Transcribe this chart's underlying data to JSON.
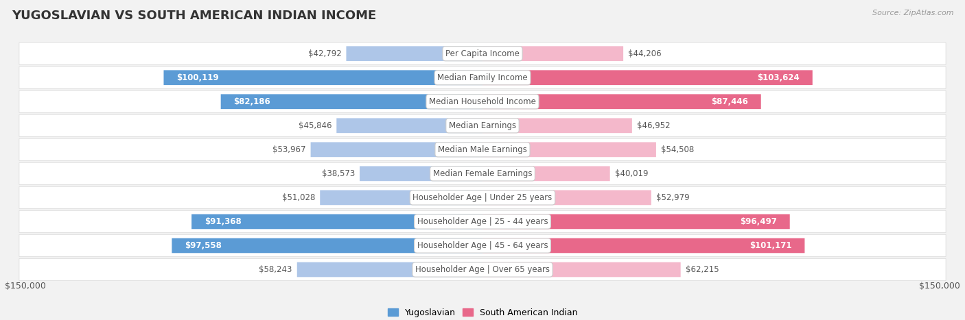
{
  "title": "YUGOSLAVIAN VS SOUTH AMERICAN INDIAN INCOME",
  "source": "Source: ZipAtlas.com",
  "categories": [
    "Per Capita Income",
    "Median Family Income",
    "Median Household Income",
    "Median Earnings",
    "Median Male Earnings",
    "Median Female Earnings",
    "Householder Age | Under 25 years",
    "Householder Age | 25 - 44 years",
    "Householder Age | 45 - 64 years",
    "Householder Age | Over 65 years"
  ],
  "yugoslav_values": [
    42792,
    100119,
    82186,
    45846,
    53967,
    38573,
    51028,
    91368,
    97558,
    58243
  ],
  "south_american_values": [
    44206,
    103624,
    87446,
    46952,
    54508,
    40019,
    52979,
    96497,
    101171,
    62215
  ],
  "yugoslav_labels": [
    "$42,792",
    "$100,119",
    "$82,186",
    "$45,846",
    "$53,967",
    "$38,573",
    "$51,028",
    "$91,368",
    "$97,558",
    "$58,243"
  ],
  "south_american_labels": [
    "$44,206",
    "$103,624",
    "$87,446",
    "$46,952",
    "$54,508",
    "$40,019",
    "$52,979",
    "$96,497",
    "$101,171",
    "$62,215"
  ],
  "yugoslav_inside": [
    false,
    true,
    true,
    false,
    false,
    false,
    false,
    true,
    true,
    false
  ],
  "south_american_inside": [
    false,
    true,
    true,
    false,
    false,
    false,
    false,
    true,
    true,
    false
  ],
  "max_value": 150000,
  "bar_height": 0.62,
  "yugoslav_light_color": "#aec6e8",
  "yugoslav_dark_color": "#5b9bd5",
  "south_american_light_color": "#f4b8cb",
  "south_american_dark_color": "#e8688a",
  "bg_color": "#f2f2f2",
  "row_bg": "#ffffff",
  "row_border": "#d8d8d8",
  "title_color": "#333333",
  "label_inside_color": "#ffffff",
  "label_outside_color": "#555555",
  "cat_label_color": "#555555",
  "legend_yugoslav_color": "#5b9bd5",
  "legend_south_american_color": "#e8688a",
  "font_size_labels": 8.5,
  "font_size_cat": 8.5,
  "font_size_title": 13,
  "font_size_axis": 9,
  "font_size_source": 8,
  "font_size_legend": 9
}
